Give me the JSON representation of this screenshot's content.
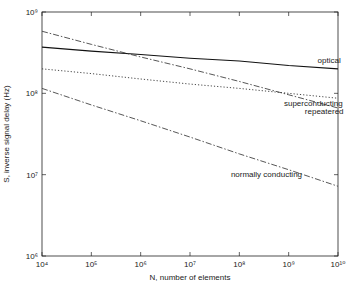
{
  "chart_data": {
    "type": "line",
    "x_label": "N, number of elements",
    "y_label": "S, inverse signal delay (Hz)",
    "log": true,
    "grid": false,
    "x": [
      10000,
      100000,
      1000000,
      10000000,
      100000000,
      1000000000,
      10000000000
    ],
    "series": [
      {
        "name": "optical",
        "color": "#111111",
        "line_style": "solid",
        "values": [
          370000000,
          330000000,
          300000000,
          270000000,
          250000000,
          220000000,
          200000000
        ]
      },
      {
        "name": "repeatered",
        "color": "#444444",
        "line_style": "dashdot",
        "values": [
          580000000,
          400000000,
          280000000,
          200000000,
          140000000,
          96000000,
          66000000
        ]
      },
      {
        "name": "superconducting",
        "color": "#333333",
        "line_style": "dotted",
        "values": [
          200000000,
          175000000,
          150000000,
          130000000,
          115000000,
          100000000,
          87000000
        ]
      },
      {
        "name": "normally conducting",
        "color": "#444444",
        "line_style": "dashdot",
        "values": [
          115000000,
          72000000,
          46000000,
          29000000,
          18000000,
          11500000,
          7200000
        ]
      }
    ],
    "xlim": [
      10000,
      10000000000
    ],
    "ylim": [
      1000000,
      1000000000
    ],
    "xticks": [
      {
        "value": 10000,
        "label": "10⁴"
      },
      {
        "value": 100000,
        "label": "10⁵"
      },
      {
        "value": 1000000,
        "label": "10⁶"
      },
      {
        "value": 10000000,
        "label": "10⁷"
      },
      {
        "value": 100000000,
        "label": "10⁸"
      },
      {
        "value": 1000000000,
        "label": "10⁹"
      },
      {
        "value": 10000000000,
        "label": "10¹⁰"
      }
    ],
    "yticks": [
      {
        "value": 1000000,
        "label": "10⁶"
      },
      {
        "value": 10000000,
        "label": "10⁷"
      },
      {
        "value": 100000000,
        "label": "10⁸"
      },
      {
        "value": 1000000000,
        "label": "10⁹"
      }
    ]
  }
}
